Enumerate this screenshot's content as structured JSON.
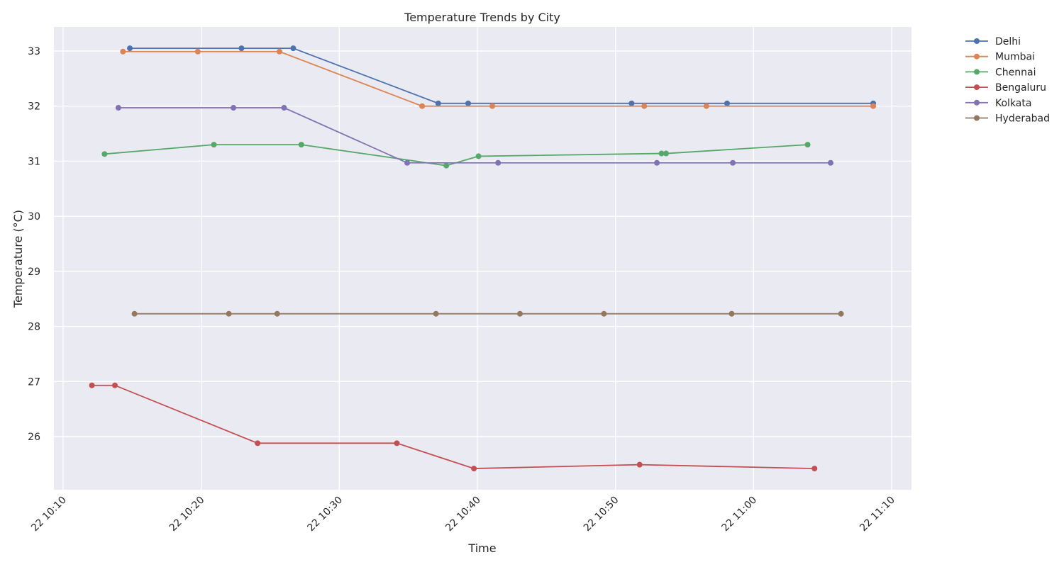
{
  "chart_data": {
    "type": "line",
    "title": "Temperature Trends by City",
    "xlabel": "Time",
    "ylabel": "Temperature (°C)",
    "x_axis": {
      "unit": "time",
      "day": "22",
      "range": [
        "10:10",
        "11:10"
      ],
      "ticks": [
        "22 10:10",
        "22 10:20",
        "22 10:30",
        "22 10:40",
        "22 10:50",
        "22 11:00",
        "22 11:10"
      ]
    },
    "y_axis": {
      "range": [
        25,
        33.45
      ],
      "ticks": [
        26,
        27,
        28,
        29,
        30,
        31,
        32,
        33
      ]
    },
    "grid": true,
    "legend_position": "outside top-right",
    "series": [
      {
        "name": "Delhi",
        "color": "#4c72b0",
        "points": [
          {
            "x": "10:14:50",
            "y": 33.05
          },
          {
            "x": "10:22:55",
            "y": 33.05
          },
          {
            "x": "10:26:40",
            "y": 33.05
          },
          {
            "x": "10:37:10",
            "y": 32.05
          },
          {
            "x": "10:39:20",
            "y": 32.05
          },
          {
            "x": "10:51:10",
            "y": 32.05
          },
          {
            "x": "10:58:05",
            "y": 32.05
          },
          {
            "x": "11:08:40",
            "y": 32.05
          }
        ]
      },
      {
        "name": "Mumbai",
        "color": "#dd8452",
        "points": [
          {
            "x": "10:14:20",
            "y": 32.99
          },
          {
            "x": "10:19:45",
            "y": 32.99
          },
          {
            "x": "10:25:40",
            "y": 32.99
          },
          {
            "x": "10:36:00",
            "y": 32.0
          },
          {
            "x": "10:41:05",
            "y": 32.0
          },
          {
            "x": "10:52:05",
            "y": 32.0
          },
          {
            "x": "10:56:35",
            "y": 32.0
          },
          {
            "x": "11:08:40",
            "y": 32.0
          }
        ]
      },
      {
        "name": "Chennai",
        "color": "#55a868",
        "points": [
          {
            "x": "10:13:00",
            "y": 31.13
          },
          {
            "x": "10:20:55",
            "y": 31.3
          },
          {
            "x": "10:27:15",
            "y": 31.3
          },
          {
            "x": "10:37:45",
            "y": 30.92
          },
          {
            "x": "10:40:05",
            "y": 31.09
          },
          {
            "x": "10:53:20",
            "y": 31.14
          },
          {
            "x": "10:53:40",
            "y": 31.14
          },
          {
            "x": "11:03:55",
            "y": 31.3
          }
        ]
      },
      {
        "name": "Bengaluru",
        "color": "#c44e52",
        "points": [
          {
            "x": "10:12:05",
            "y": 26.93
          },
          {
            "x": "10:13:45",
            "y": 26.93
          },
          {
            "x": "10:24:05",
            "y": 25.88
          },
          {
            "x": "10:34:10",
            "y": 25.88
          },
          {
            "x": "10:39:45",
            "y": 25.42
          },
          {
            "x": "10:51:45",
            "y": 25.49
          },
          {
            "x": "11:04:25",
            "y": 25.42
          }
        ]
      },
      {
        "name": "Kolkata",
        "color": "#8172b3",
        "points": [
          {
            "x": "10:14:00",
            "y": 31.97
          },
          {
            "x": "10:22:20",
            "y": 31.97
          },
          {
            "x": "10:26:00",
            "y": 31.97
          },
          {
            "x": "10:34:55",
            "y": 30.97
          },
          {
            "x": "10:41:30",
            "y": 30.97
          },
          {
            "x": "10:53:00",
            "y": 30.97
          },
          {
            "x": "10:58:30",
            "y": 30.97
          },
          {
            "x": "11:05:35",
            "y": 30.97
          }
        ]
      },
      {
        "name": "Hyderabad",
        "color": "#937860",
        "points": [
          {
            "x": "10:15:10",
            "y": 28.23
          },
          {
            "x": "10:22:00",
            "y": 28.23
          },
          {
            "x": "10:25:30",
            "y": 28.23
          },
          {
            "x": "10:37:00",
            "y": 28.23
          },
          {
            "x": "10:43:05",
            "y": 28.23
          },
          {
            "x": "10:49:10",
            "y": 28.23
          },
          {
            "x": "10:58:25",
            "y": 28.23
          },
          {
            "x": "11:06:20",
            "y": 28.23
          }
        ]
      }
    ]
  }
}
